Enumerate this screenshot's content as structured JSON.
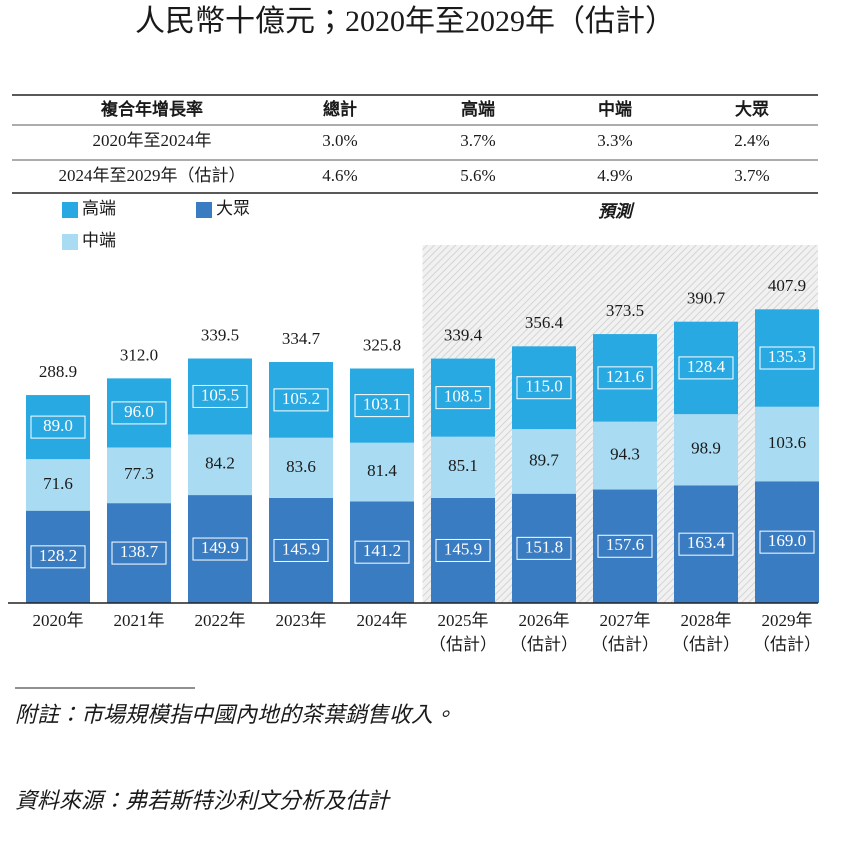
{
  "chart_data": {
    "type": "stacked_bar",
    "title": "人民幣十億元；2020年至2029年（估計）",
    "table": {
      "header": [
        "複合年增長率",
        "總計",
        "高端",
        "中端",
        "大眾"
      ],
      "rows": [
        [
          "2020年至2024年",
          "3.0%",
          "3.7%",
          "3.3%",
          "2.4%"
        ],
        [
          "2024年至2029年（估計）",
          "4.6%",
          "5.6%",
          "4.9%",
          "3.7%"
        ]
      ]
    },
    "forecast_label": "預測",
    "forecast_start_index": 5,
    "categories": [
      "2020年",
      "2021年",
      "2022年",
      "2023年",
      "2024年",
      "2025年（估計）",
      "2026年（估計）",
      "2027年（估計）",
      "2028年（估計）",
      "2029年（估計）"
    ],
    "series": [
      {
        "name": "大眾",
        "color": "#3a7cc2",
        "values": [
          128.2,
          138.7,
          149.9,
          145.9,
          141.2,
          145.9,
          151.8,
          157.6,
          163.4,
          169.0
        ],
        "value_labels": [
          "128.2",
          "138.7",
          "149.9",
          "145.9",
          "141.2",
          "145.9",
          "151.8",
          "157.6",
          "163.4",
          "169.0"
        ]
      },
      {
        "name": "中端",
        "color": "#a9dcf2",
        "values": [
          71.6,
          77.3,
          84.2,
          83.6,
          81.4,
          85.1,
          89.7,
          94.3,
          98.9,
          103.6
        ],
        "value_labels": [
          "71.6",
          "77.3",
          "84.2",
          "83.6",
          "81.4",
          "85.1",
          "89.7",
          "94.3",
          "98.9",
          "103.6"
        ]
      },
      {
        "name": "高端",
        "color": "#29a9e1",
        "values": [
          89.0,
          96.0,
          105.5,
          105.2,
          103.1,
          108.5,
          115.0,
          121.6,
          128.4,
          135.3
        ],
        "value_labels": [
          "89.0",
          "96.0",
          "105.5",
          "105.2",
          "103.1",
          "108.5",
          "115.0",
          "121.6",
          "128.4",
          "135.3"
        ]
      }
    ],
    "totals": [
      288.9,
      312.0,
      339.5,
      334.7,
      325.8,
      339.4,
      356.4,
      373.5,
      390.7,
      407.9
    ],
    "total_labels": [
      "288.9",
      "312.0",
      "339.5",
      "334.7",
      "325.8",
      "339.4",
      "356.4",
      "373.5",
      "390.7",
      "407.9"
    ],
    "notes": [
      "附註：市場規模指中國內地的茶葉銷售收入。",
      "資料來源：弗若斯特沙利文分析及估計"
    ]
  }
}
